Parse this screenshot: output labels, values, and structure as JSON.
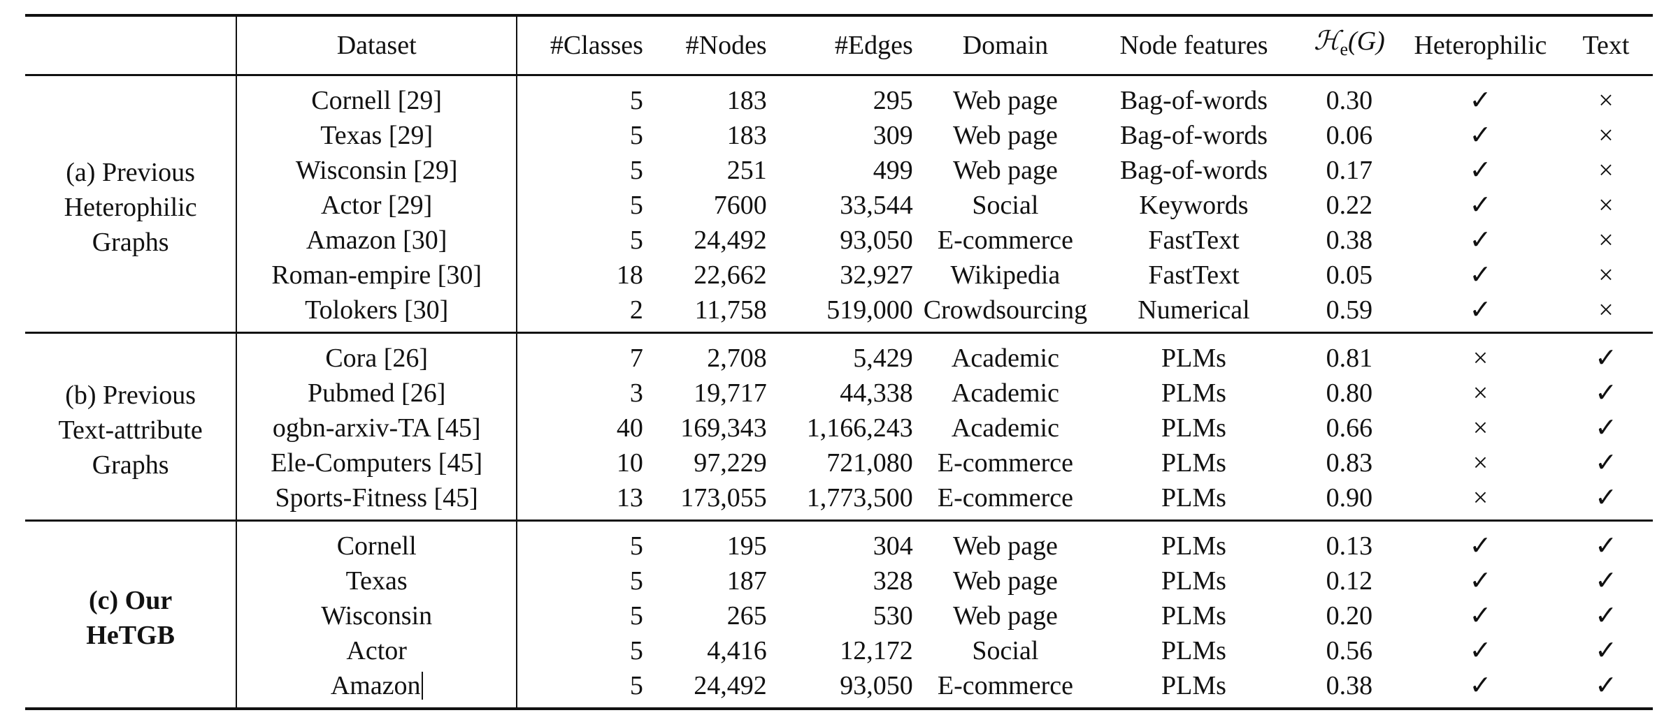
{
  "table": {
    "headers": {
      "group": "",
      "dataset": "Dataset",
      "classes": "#Classes",
      "nodes": "#Nodes",
      "edges": "#Edges",
      "domain": "Domain",
      "node_features": "Node features",
      "he_script": "ℋ",
      "he_sub": "e",
      "he_arg": "(G)",
      "heterophilic": "Heterophilic",
      "text": "Text"
    },
    "groups": [
      {
        "label_lines": [
          "(a) Previous",
          "Heterophilic",
          "Graphs"
        ],
        "bold": false,
        "rows": [
          {
            "dataset": "Cornell [29]",
            "classes": "5",
            "nodes": "183",
            "edges": "295",
            "domain": "Web page",
            "features": "Bag-of-words",
            "he": "0.30",
            "heterophilic": "✓",
            "text": "×"
          },
          {
            "dataset": "Texas [29]",
            "classes": "5",
            "nodes": "183",
            "edges": "309",
            "domain": "Web page",
            "features": "Bag-of-words",
            "he": "0.06",
            "heterophilic": "✓",
            "text": "×"
          },
          {
            "dataset": "Wisconsin [29]",
            "classes": "5",
            "nodes": "251",
            "edges": "499",
            "domain": "Web page",
            "features": "Bag-of-words",
            "he": "0.17",
            "heterophilic": "✓",
            "text": "×"
          },
          {
            "dataset": "Actor [29]",
            "classes": "5",
            "nodes": "7600",
            "edges": "33,544",
            "domain": "Social",
            "features": "Keywords",
            "he": "0.22",
            "heterophilic": "✓",
            "text": "×"
          },
          {
            "dataset": "Amazon [30]",
            "classes": "5",
            "nodes": "24,492",
            "edges": "93,050",
            "domain": "E-commerce",
            "features": "FastText",
            "he": "0.38",
            "heterophilic": "✓",
            "text": "×"
          },
          {
            "dataset": "Roman-empire [30]",
            "classes": "18",
            "nodes": "22,662",
            "edges": "32,927",
            "domain": "Wikipedia",
            "features": "FastText",
            "he": "0.05",
            "heterophilic": "✓",
            "text": "×"
          },
          {
            "dataset": "Tolokers [30]",
            "classes": "2",
            "nodes": "11,758",
            "edges": "519,000",
            "domain": "Crowdsourcing",
            "features": "Numerical",
            "he": "0.59",
            "heterophilic": "✓",
            "text": "×"
          }
        ]
      },
      {
        "label_lines": [
          "(b) Previous",
          "Text-attribute",
          "Graphs"
        ],
        "bold": false,
        "rows": [
          {
            "dataset": "Cora [26]",
            "classes": "7",
            "nodes": "2,708",
            "edges": "5,429",
            "domain": "Academic",
            "features": "PLMs",
            "he": "0.81",
            "heterophilic": "×",
            "text": "✓"
          },
          {
            "dataset": "Pubmed [26]",
            "classes": "3",
            "nodes": "19,717",
            "edges": "44,338",
            "domain": "Academic",
            "features": "PLMs",
            "he": "0.80",
            "heterophilic": "×",
            "text": "✓"
          },
          {
            "dataset": "ogbn-arxiv-TA [45]",
            "classes": "40",
            "nodes": "169,343",
            "edges": "1,166,243",
            "domain": "Academic",
            "features": "PLMs",
            "he": "0.66",
            "heterophilic": "×",
            "text": "✓"
          },
          {
            "dataset": "Ele-Computers [45]",
            "classes": "10",
            "nodes": "97,229",
            "edges": "721,080",
            "domain": "E-commerce",
            "features": "PLMs",
            "he": "0.83",
            "heterophilic": "×",
            "text": "✓"
          },
          {
            "dataset": "Sports-Fitness [45]",
            "classes": "13",
            "nodes": "173,055",
            "edges": "1,773,500",
            "domain": "E-commerce",
            "features": "PLMs",
            "he": "0.90",
            "heterophilic": "×",
            "text": "✓"
          }
        ]
      },
      {
        "label_lines": [
          "(c) Our",
          "HeTGB"
        ],
        "bold": true,
        "rows": [
          {
            "dataset": "Cornell",
            "classes": "5",
            "nodes": "195",
            "edges": "304",
            "domain": "Web page",
            "features": "PLMs",
            "he": "0.13",
            "heterophilic": "✓",
            "text": "✓"
          },
          {
            "dataset": "Texas",
            "classes": "5",
            "nodes": "187",
            "edges": "328",
            "domain": "Web page",
            "features": "PLMs",
            "he": "0.12",
            "heterophilic": "✓",
            "text": "✓"
          },
          {
            "dataset": "Wisconsin",
            "classes": "5",
            "nodes": "265",
            "edges": "530",
            "domain": "Web page",
            "features": "PLMs",
            "he": "0.20",
            "heterophilic": "✓",
            "text": "✓"
          },
          {
            "dataset": "Actor",
            "classes": "5",
            "nodes": "4,416",
            "edges": "12,172",
            "domain": "Social",
            "features": "PLMs",
            "he": "0.56",
            "heterophilic": "✓",
            "text": "✓"
          },
          {
            "dataset": "Amazon",
            "classes": "5",
            "nodes": "24,492",
            "edges": "93,050",
            "domain": "E-commerce",
            "features": "PLMs",
            "he": "0.38",
            "heterophilic": "✓",
            "text": "✓"
          }
        ]
      }
    ]
  }
}
